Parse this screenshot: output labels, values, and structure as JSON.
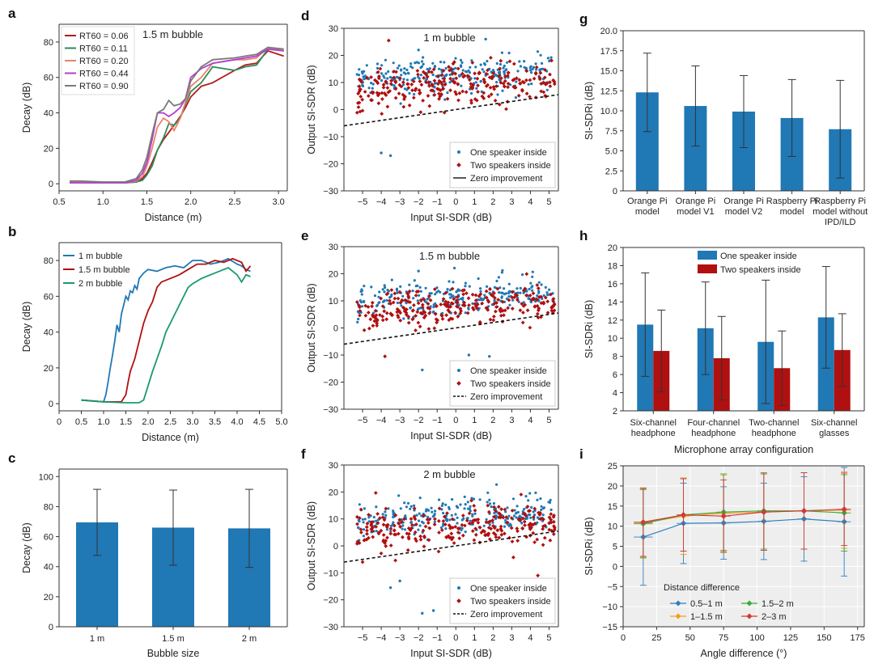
{
  "colors": {
    "blue": "#2078b4",
    "red": "#b01010",
    "green": "#1a9a6c",
    "rt_red": "#b01c1c",
    "rt_green": "#2e8b57",
    "rt_salmon": "#e8836e",
    "rt_purple": "#b43fd0",
    "rt_gray": "#7a7a7a",
    "i_blue": "#2d7fc2",
    "i_orange": "#f0a020",
    "i_green": "#3caa3c",
    "i_red": "#d13a3a",
    "errbar": "#333333"
  },
  "chart_data": [
    {
      "id": "a",
      "letter": "a",
      "type": "line",
      "title": "",
      "annotation": "1.5 m bubble",
      "xlabel": "Distance (m)",
      "ylabel": "Decay (dB)",
      "xlim": [
        0.5,
        3.1
      ],
      "ylim": [
        -4,
        90
      ],
      "xticks": [
        0.5,
        1.0,
        1.5,
        2.0,
        2.5,
        3.0
      ],
      "yticks": [
        0,
        20,
        40,
        60,
        80
      ],
      "xtick_labels": [
        "0.5",
        "1.0",
        "1.5",
        "2.0",
        "2.5",
        "3.0"
      ],
      "ytick_labels": [
        "0",
        "20",
        "40",
        "60",
        "80"
      ],
      "legend_position": "top-left",
      "x": [
        0.62,
        0.75,
        1.0,
        1.25,
        1.38,
        1.45,
        1.5,
        1.56,
        1.62,
        1.69,
        1.75,
        1.81,
        1.88,
        1.94,
        2.0,
        2.12,
        2.25,
        2.5,
        2.62,
        2.75,
        2.88,
        3.06
      ],
      "series": [
        {
          "name": "RT60 = 0.06",
          "color_key": "rt_red",
          "values": [
            1,
            1,
            0.5,
            0.5,
            1,
            3,
            6,
            12,
            19,
            25,
            29,
            33,
            38,
            43,
            49,
            55,
            57,
            64,
            67,
            68,
            75,
            72
          ]
        },
        {
          "name": "RT60 = 0.11",
          "color_key": "rt_green",
          "values": [
            0.8,
            0.5,
            0.5,
            0.5,
            1,
            2,
            5,
            10,
            19,
            26,
            34,
            33,
            37,
            45,
            52,
            57,
            66,
            64,
            66,
            67,
            76,
            75
          ]
        },
        {
          "name": "RT60 = 0.20",
          "color_key": "rt_salmon",
          "values": [
            1.2,
            1,
            0.5,
            0.5,
            1.5,
            4,
            10,
            20,
            32,
            37,
            35,
            30,
            37,
            46,
            55,
            60,
            68,
            70,
            70,
            71,
            77,
            75
          ]
        },
        {
          "name": "RT60 = 0.44",
          "color_key": "rt_purple",
          "values": [
            0.5,
            0.5,
            0.5,
            0.5,
            2,
            6,
            12,
            25,
            40,
            40,
            38,
            40,
            43,
            48,
            60,
            65,
            68,
            70,
            71,
            72,
            76,
            75
          ]
        },
        {
          "name": "RT60 = 0.90",
          "color_key": "rt_gray",
          "values": [
            1.5,
            1.5,
            1,
            1,
            3,
            8,
            15,
            28,
            40,
            42,
            47,
            44,
            45,
            48,
            58,
            66,
            70,
            71,
            72,
            73,
            77,
            76
          ]
        }
      ]
    },
    {
      "id": "b",
      "letter": "b",
      "type": "line",
      "title": "",
      "annotation": "",
      "xlabel": "Distance (m)",
      "ylabel": "Decay (dB)",
      "xlim": [
        0,
        5
      ],
      "ylim": [
        -4,
        90
      ],
      "xticks": [
        0,
        0.5,
        1.0,
        1.5,
        2.0,
        2.5,
        3.0,
        3.5,
        4.0,
        4.5,
        5.0
      ],
      "yticks": [
        0,
        20,
        40,
        60,
        80
      ],
      "xtick_labels": [
        "0",
        "0.5",
        "1.0",
        "1.5",
        "2.0",
        "2.5",
        "3.0",
        "3.5",
        "4.0",
        "4.5",
        "5.0"
      ],
      "ytick_labels": [
        "0",
        "20",
        "40",
        "60",
        "80"
      ],
      "legend_position": "top-left",
      "series": [
        {
          "name": "1 m bubble",
          "color_key": "blue",
          "x": [
            0.5,
            0.75,
            1.0,
            1.05,
            1.1,
            1.15,
            1.2,
            1.25,
            1.3,
            1.35,
            1.4,
            1.45,
            1.5,
            1.55,
            1.6,
            1.65,
            1.7,
            1.75,
            1.8,
            1.9,
            2.0,
            2.2,
            2.4,
            2.6,
            2.8,
            3.0,
            3.2,
            3.4,
            3.6,
            3.8,
            4.0,
            4.1,
            4.2,
            4.3
          ],
          "values": [
            2,
            1.5,
            1,
            5,
            12,
            20,
            27,
            35,
            44,
            40,
            50,
            55,
            60,
            58,
            63,
            62,
            66,
            64,
            70,
            73,
            75,
            74,
            76,
            77,
            76,
            80,
            80,
            78,
            79,
            81,
            78,
            77,
            75,
            74
          ]
        },
        {
          "name": "1.5 m bubble",
          "color_key": "red",
          "x": [
            0.5,
            1.0,
            1.4,
            1.5,
            1.55,
            1.6,
            1.7,
            1.8,
            1.9,
            2.0,
            2.1,
            2.2,
            2.3,
            2.5,
            2.7,
            2.9,
            3.1,
            3.3,
            3.5,
            3.7,
            3.9,
            4.1,
            4.2,
            4.3
          ],
          "values": [
            2,
            1,
            1,
            5,
            12,
            18,
            25,
            35,
            45,
            52,
            57,
            65,
            68,
            70,
            72,
            75,
            78,
            78,
            80,
            79,
            81,
            79,
            74,
            77
          ]
        },
        {
          "name": "2 m bubble",
          "color_key": "green",
          "x": [
            0.5,
            1.0,
            1.5,
            1.8,
            1.9,
            2.0,
            2.1,
            2.2,
            2.3,
            2.4,
            2.5,
            2.6,
            2.7,
            2.8,
            2.9,
            3.0,
            3.2,
            3.4,
            3.6,
            3.8,
            4.0,
            4.1,
            4.2,
            4.3
          ],
          "values": [
            2,
            1,
            0.5,
            0.5,
            2,
            10,
            18,
            25,
            32,
            40,
            45,
            50,
            55,
            60,
            65,
            67,
            70,
            72,
            74,
            76,
            72,
            68,
            72,
            71
          ]
        }
      ]
    },
    {
      "id": "c",
      "letter": "c",
      "type": "bar",
      "title": "",
      "annotation": "",
      "xlabel": "Bubble size",
      "ylabel": "Decay (dB)",
      "ylim": [
        0,
        105
      ],
      "yticks": [
        0,
        20,
        40,
        60,
        80,
        100
      ],
      "ytick_labels": [
        "0",
        "20",
        "40",
        "60",
        "80",
        "100"
      ],
      "categories": [
        "1 m",
        "1.5 m",
        "2 m"
      ],
      "values": [
        69.5,
        66,
        65.5
      ],
      "errors": [
        22,
        25,
        26
      ]
    },
    {
      "id": "d",
      "letter": "d",
      "type": "scatter",
      "title": "",
      "annotation": "1 m bubble",
      "xlabel": "Input SI-SDR (dB)",
      "ylabel": "Output SI-SDR (dB)",
      "xlim": [
        -6,
        5.5
      ],
      "ylim": [
        -30,
        30
      ],
      "xticks": [
        -5,
        -4,
        -3,
        -2,
        -1,
        0,
        1,
        2,
        3,
        4,
        5
      ],
      "yticks": [
        -30,
        -20,
        -10,
        0,
        10,
        20,
        30
      ],
      "xtick_labels": [
        "−5",
        "−4",
        "−3",
        "−2",
        "−1",
        "0",
        "1",
        "2",
        "3",
        "4",
        "5"
      ],
      "ytick_labels": [
        "−30",
        "−20",
        "−10",
        "0",
        "10",
        "20",
        "30"
      ],
      "legend": [
        "One speaker inside",
        "Two speakers inside",
        "Zero improvement"
      ],
      "zero_line_style": "solid",
      "outliers_one": [
        [
          -4.0,
          -16
        ],
        [
          -3.5,
          -17
        ],
        [
          1.6,
          26
        ],
        [
          -2.0,
          22
        ]
      ],
      "outliers_two": [
        [
          -3.6,
          25.5
        ]
      ]
    },
    {
      "id": "e",
      "letter": "e",
      "type": "scatter",
      "title": "",
      "annotation": "1.5 m bubble",
      "xlabel": "Input SI-SDR (dB)",
      "ylabel": "Output SI-SDR (dB)",
      "xlim": [
        -6,
        5.5
      ],
      "ylim": [
        -30,
        30
      ],
      "xticks": [
        -5,
        -4,
        -3,
        -2,
        -1,
        0,
        1,
        2,
        3,
        4,
        5
      ],
      "yticks": [
        -30,
        -20,
        -10,
        0,
        10,
        20,
        30
      ],
      "xtick_labels": [
        "−5",
        "−4",
        "−3",
        "−2",
        "−1",
        "0",
        "1",
        "2",
        "3",
        "4",
        "5"
      ],
      "ytick_labels": [
        "−30",
        "−20",
        "−10",
        "0",
        "10",
        "20",
        "30"
      ],
      "legend": [
        "One speaker inside",
        "Two speakers inside",
        "Zero improvement"
      ],
      "zero_line_style": "dashed",
      "outliers_one": [
        [
          -1.8,
          -15.5
        ],
        [
          0.7,
          -10
        ],
        [
          1.8,
          -10.5
        ],
        [
          -2.0,
          21
        ]
      ],
      "outliers_two": [
        [
          -3.8,
          -10.5
        ]
      ]
    },
    {
      "id": "f",
      "letter": "f",
      "type": "scatter",
      "title": "",
      "annotation": "2 m bubble",
      "xlabel": "Input SI-SDR (dB)",
      "ylabel": "Output SI-SDR (dB)",
      "xlim": [
        -6,
        5.5
      ],
      "ylim": [
        -30,
        30
      ],
      "xticks": [
        -5,
        -4,
        -3,
        -2,
        -1,
        0,
        1,
        2,
        3,
        4,
        5
      ],
      "yticks": [
        -30,
        -20,
        -10,
        0,
        10,
        20,
        30
      ],
      "xtick_labels": [
        "−5",
        "−4",
        "−3",
        "−2",
        "−1",
        "0",
        "1",
        "2",
        "3",
        "4",
        "5"
      ],
      "ytick_labels": [
        "−30",
        "−20",
        "−10",
        "0",
        "10",
        "20",
        "30"
      ],
      "legend": [
        "One speaker inside",
        "Two speakers inside",
        "Zero improvement"
      ],
      "zero_line_style": "dashed",
      "outliers_one": [
        [
          -3.5,
          -15.5
        ],
        [
          -3.0,
          -13
        ],
        [
          -1.8,
          -25
        ],
        [
          -1.2,
          -24
        ],
        [
          0.0,
          -24.5
        ],
        [
          1.2,
          -27
        ]
      ],
      "outliers_two": [
        [
          4.4,
          -11
        ],
        [
          -5.0,
          -6
        ]
      ]
    },
    {
      "id": "g",
      "letter": "g",
      "type": "bar",
      "title": "",
      "annotation": "",
      "xlabel": "",
      "ylabel": "SI-SDRi (dB)",
      "ylim": [
        0,
        20
      ],
      "yticks": [
        0,
        2.5,
        5.0,
        7.5,
        10.0,
        12.5,
        15.0,
        17.5,
        20.0
      ],
      "ytick_labels": [
        "0",
        "2.5",
        "5.0",
        "7.5",
        "10.0",
        "12.5",
        "15.0",
        "17.5",
        "20.0"
      ],
      "categories": [
        [
          "Orange Pi",
          "model"
        ],
        [
          "Orange Pi",
          "model V1"
        ],
        [
          "Orange Pi",
          "model V2"
        ],
        [
          "Raspberry Pi",
          "model"
        ],
        [
          "Raspberry Pi",
          "model without",
          "IPD/ILD"
        ]
      ],
      "values": [
        12.3,
        10.6,
        9.9,
        9.1,
        7.7
      ],
      "errors": [
        4.9,
        5.0,
        4.5,
        4.8,
        6.1
      ]
    },
    {
      "id": "h",
      "letter": "h",
      "type": "bar",
      "title": "",
      "annotation": "",
      "xlabel": "Microphone array configuration",
      "ylabel": "SI-SDRi (dB)",
      "ylim": [
        2,
        20
      ],
      "yticks": [
        2,
        4,
        6,
        8,
        10,
        12,
        14,
        16,
        18,
        20
      ],
      "ytick_labels": [
        "2",
        "4",
        "6",
        "8",
        "10",
        "12",
        "14",
        "16",
        "18",
        "20"
      ],
      "categories": [
        [
          "Six-channel",
          "headphone"
        ],
        [
          "Four-channel",
          "headphone"
        ],
        [
          "Two-channel",
          "headphone"
        ],
        [
          "Six-channel",
          "glasses"
        ]
      ],
      "legend_position": "top-left",
      "series": [
        {
          "name": "One speaker inside",
          "color_key": "blue",
          "values": [
            11.5,
            11.1,
            9.6,
            12.3
          ],
          "errors": [
            5.7,
            5.1,
            6.8,
            5.6
          ]
        },
        {
          "name": "Two speakers inside",
          "color_key": "red",
          "values": [
            8.6,
            7.8,
            6.7,
            8.7
          ],
          "errors": [
            4.5,
            4.6,
            4.1,
            4.0
          ]
        }
      ]
    },
    {
      "id": "i",
      "letter": "i",
      "type": "line",
      "title": "",
      "annotation": "",
      "xlabel": "Angle difference (°)",
      "ylabel": "SI-SDRi (dB)",
      "xlim": [
        0,
        180
      ],
      "ylim": [
        -15,
        25
      ],
      "xticks": [
        0,
        25,
        50,
        75,
        100,
        125,
        150,
        175
      ],
      "yticks": [
        -15,
        -10,
        -5,
        0,
        5,
        10,
        15,
        20,
        25
      ],
      "xtick_labels": [
        "0",
        "25",
        "50",
        "75",
        "100",
        "125",
        "150",
        "175"
      ],
      "ytick_labels": [
        "−15",
        "−10",
        "−5",
        "0",
        "5",
        "10",
        "15",
        "20",
        "25"
      ],
      "legend_title": "Distance difference",
      "legend_position": "bottom",
      "x": [
        15,
        45,
        75,
        105,
        135,
        165
      ],
      "series": [
        {
          "name": "0.5–1 m",
          "color_key": "i_blue",
          "values": [
            7.3,
            10.7,
            10.8,
            11.2,
            11.8,
            11.1
          ],
          "yerr": [
            12,
            10,
            9,
            9.5,
            10.5,
            13.5
          ],
          "xerr": [
            7,
            5,
            5,
            5,
            5,
            5
          ]
        },
        {
          "name": "1–1.5 m",
          "color_key": "i_orange",
          "values": [
            10.8,
            12.5,
            13.2,
            13.5,
            13.8,
            14.0
          ],
          "yerr": [
            8.5,
            9.5,
            9.5,
            9.5,
            9.5,
            9.5
          ],
          "xerr": [
            7,
            5,
            5,
            5,
            5,
            5
          ]
        },
        {
          "name": "1.5–2 m",
          "color_key": "i_green",
          "values": [
            10.6,
            12.8,
            13.5,
            13.8,
            13.8,
            13.3
          ],
          "yerr": [
            8.5,
            9,
            9.5,
            9.5,
            9.5,
            9.5
          ],
          "xerr": [
            7,
            5,
            5,
            5,
            5,
            5
          ]
        },
        {
          "name": "2–3 m",
          "color_key": "i_red",
          "values": [
            11.0,
            12.8,
            12.5,
            13.5,
            13.8,
            14.2
          ],
          "yerr": [
            8.5,
            9,
            9,
            9.5,
            9.5,
            9
          ],
          "xerr": [
            7,
            5,
            5,
            5,
            5,
            5
          ]
        }
      ]
    }
  ]
}
